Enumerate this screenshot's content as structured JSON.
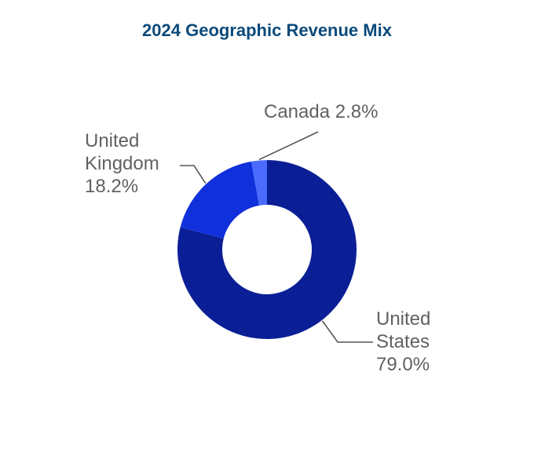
{
  "colors": {
    "title": "#0b4a7a",
    "label_text": "#616161",
    "leader_line": "#555555"
  },
  "chart_data": {
    "type": "pie",
    "style": "donut",
    "title": "2024 Geographic Revenue Mix",
    "unit": "%",
    "categories": [
      "United States",
      "United Kingdom",
      "Canada"
    ],
    "values": [
      79.0,
      18.2,
      2.8
    ],
    "colors": [
      "#0a1f96",
      "#1030dc",
      "#4b6bff"
    ],
    "labels": [
      {
        "lines": [
          "United",
          "States",
          "79.0%"
        ]
      },
      {
        "lines": [
          "United",
          "Kingdom",
          "18.2%"
        ]
      },
      {
        "lines": [
          "Canada 2.8%"
        ]
      }
    ],
    "legend": "none"
  }
}
